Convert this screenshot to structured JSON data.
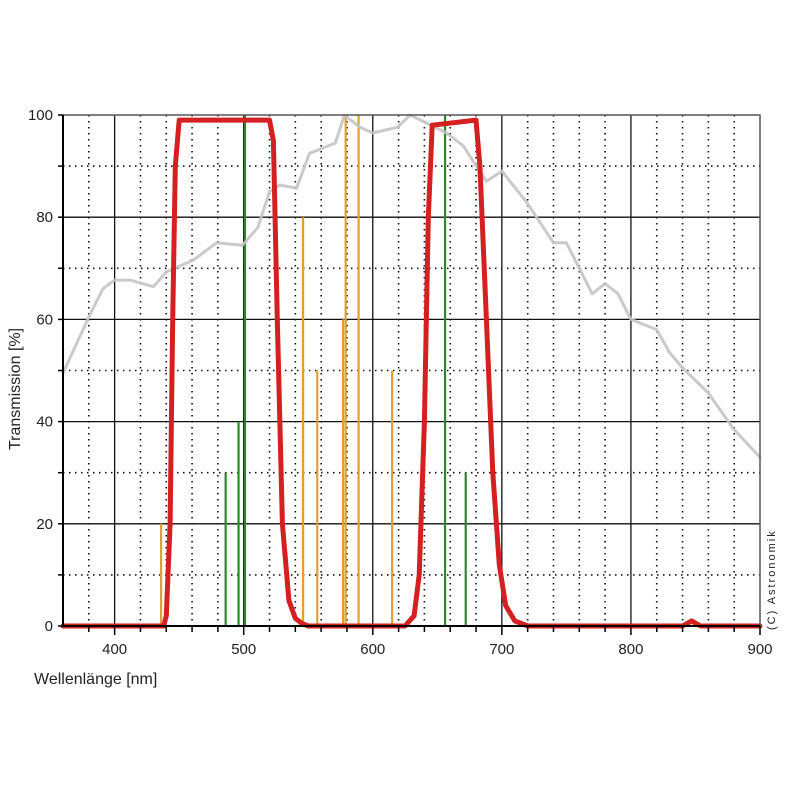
{
  "chart_data": {
    "type": "line",
    "xlabel": "Wellenlänge [nm]",
    "ylabel": "Transmission [%]",
    "xlim": [
      360,
      900
    ],
    "ylim": [
      0,
      100
    ],
    "x_ticks": [
      "400",
      "500",
      "600",
      "700",
      "800",
      "900"
    ],
    "y_ticks": [
      "0",
      "20",
      "40",
      "60",
      "80",
      "100"
    ],
    "grid": "solid major every 100 nm / 20 %, dotted minor every 20 nm / 10 %",
    "copyright": "(C) Astronomik",
    "colors": {
      "filter": "#d42020",
      "sensor": "#c4c4c4",
      "orange_lines": "#e0a030",
      "green_lines": "#2a8a2a"
    },
    "series": [
      {
        "role": "filter-transmission",
        "color": "#d42020",
        "x": [
          360,
          438,
          440,
          443,
          445,
          447,
          450,
          520,
          523,
          526,
          530,
          535,
          540,
          545,
          550,
          625,
          632,
          636,
          640,
          643,
          646,
          680,
          683,
          688,
          693,
          698,
          703,
          710,
          720,
          840,
          847,
          854,
          900
        ],
        "y": [
          0,
          0,
          2,
          20,
          60,
          90,
          99,
          99,
          95,
          60,
          20,
          5,
          1.5,
          0.5,
          0,
          0,
          2,
          10,
          40,
          80,
          98,
          99,
          90,
          60,
          30,
          12,
          4,
          1,
          0,
          0,
          1,
          0,
          0
        ]
      },
      {
        "role": "sensor-curve",
        "color": "#c4c4c4",
        "x": [
          360,
          381,
          391,
          400,
          412,
          430,
          440,
          461,
          479,
          499,
          511,
          520,
          528,
          541,
          551,
          571,
          578,
          590,
          600,
          619,
          629,
          657,
          670,
          688,
          700,
          719,
          740,
          750,
          770,
          780,
          790,
          800,
          820,
          830,
          840,
          860,
          879,
          900
        ],
        "y": [
          49.5,
          61,
          66,
          67.7,
          67.7,
          66.4,
          69.3,
          71.6,
          75,
          74.5,
          78,
          85,
          86.3,
          85.7,
          92.5,
          94.5,
          100,
          97.6,
          96.5,
          97.6,
          100,
          96.5,
          94,
          87,
          89,
          83,
          75,
          75,
          65,
          67,
          65,
          60,
          58,
          53.5,
          50.5,
          45.6,
          38.7,
          33
        ]
      }
    ],
    "emission_lines": [
      {
        "nm": 436,
        "value": 20,
        "color": "#e0a030"
      },
      {
        "nm": 486,
        "value": 30,
        "color": "#2a8a2a"
      },
      {
        "nm": 496,
        "value": 40,
        "color": "#2a8a2a"
      },
      {
        "nm": 501,
        "value": 100,
        "color": "#2a8a2a"
      },
      {
        "nm": 546,
        "value": 80,
        "color": "#e0a030"
      },
      {
        "nm": 557,
        "value": 50,
        "color": "#e0a030"
      },
      {
        "nm": 577,
        "value": 60,
        "color": "#e0a030"
      },
      {
        "nm": 579,
        "value": 100,
        "color": "#e0a030"
      },
      {
        "nm": 589,
        "value": 100,
        "color": "#e0a030"
      },
      {
        "nm": 615,
        "value": 50,
        "color": "#e0a030"
      },
      {
        "nm": 656,
        "value": 100,
        "color": "#2a8a2a"
      },
      {
        "nm": 672,
        "value": 30,
        "color": "#2a8a2a"
      }
    ]
  }
}
